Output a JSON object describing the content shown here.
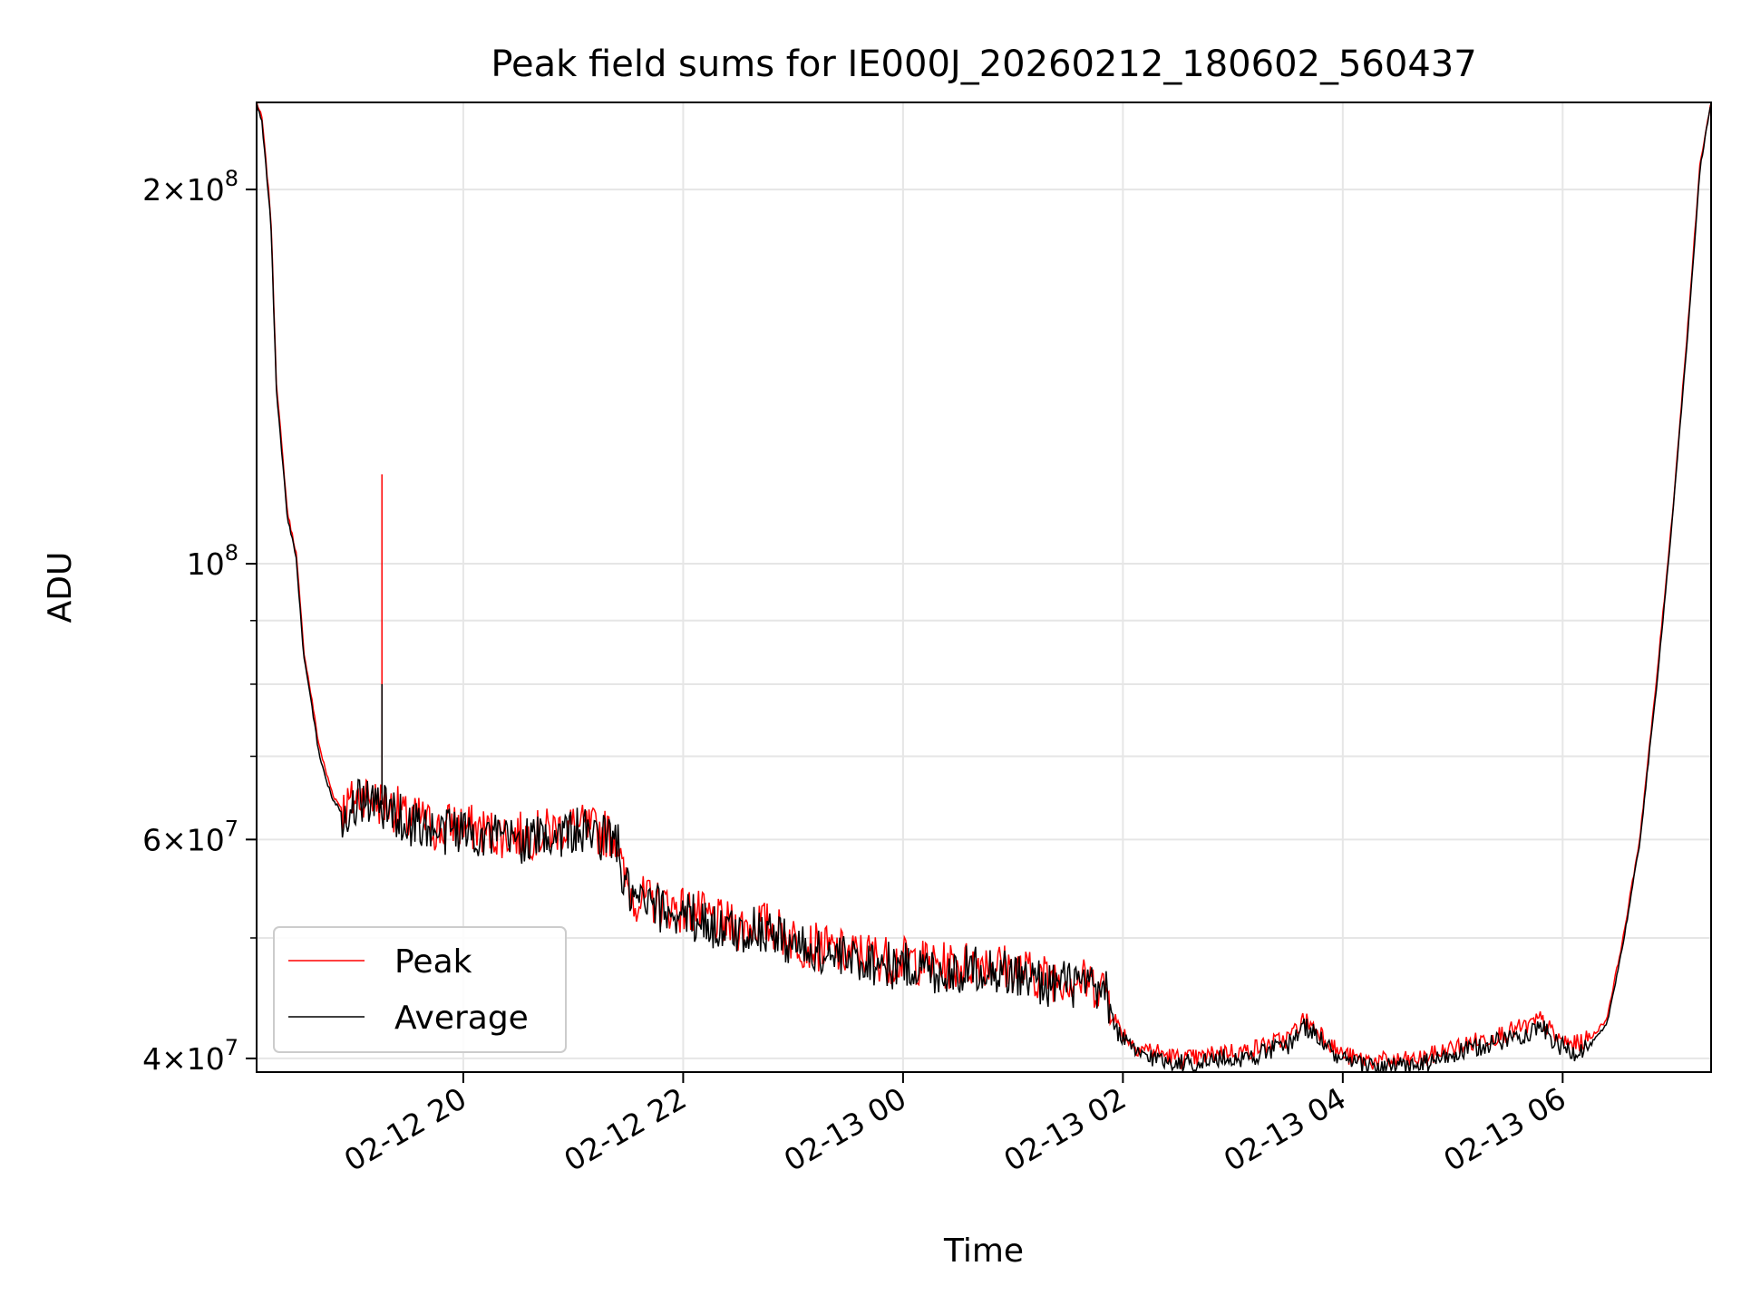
{
  "chart_data": {
    "type": "line",
    "title": "Peak field sums for IE000J_20260212_180602_560437",
    "xlabel": "Time",
    "ylabel": "ADU",
    "yscale": "log",
    "grid": true,
    "legend_position": "lower-left",
    "x_unit": "hours since 02-12 18:00",
    "xlim": [
      18.12,
      31.35
    ],
    "ylim": [
      39000000,
      235000000
    ],
    "x_ticks": [
      {
        "value": 20,
        "label": "02-12 20"
      },
      {
        "value": 22,
        "label": "02-12 22"
      },
      {
        "value": 24,
        "label": "02-13 00"
      },
      {
        "value": 26,
        "label": "02-13 02"
      },
      {
        "value": 28,
        "label": "02-13 04"
      },
      {
        "value": 30,
        "label": "02-13 06"
      }
    ],
    "y_major_ticks": [
      {
        "value": 40000000,
        "base": "4",
        "exp": "7"
      },
      {
        "value": 60000000,
        "base": "6",
        "exp": "7"
      },
      {
        "value": 100000000,
        "base": "",
        "exp": "8"
      },
      {
        "value": 200000000,
        "base": "2",
        "exp": "8"
      }
    ],
    "y_minor_ticks": [
      50000000,
      70000000,
      80000000,
      90000000
    ],
    "series": [
      {
        "name": "Peak",
        "color": "#ff0000",
        "x": [
          18.12,
          18.17,
          18.25,
          18.3,
          18.4,
          18.48,
          18.55,
          18.62,
          18.68,
          18.75,
          18.82,
          18.9,
          19.0,
          19.1,
          19.2,
          19.3,
          19.4,
          19.5,
          19.6,
          19.7,
          19.8,
          19.9,
          20.0,
          20.2,
          20.4,
          20.6,
          20.8,
          21.0,
          21.2,
          21.4,
          21.45,
          21.55,
          21.7,
          21.9,
          22.1,
          22.3,
          22.5,
          22.7,
          22.9,
          23.1,
          23.3,
          23.5,
          23.7,
          23.9,
          24.1,
          24.3,
          24.5,
          24.7,
          24.9,
          25.1,
          25.3,
          25.5,
          25.7,
          25.85,
          25.95,
          26.1,
          26.3,
          26.5,
          26.7,
          26.9,
          27.1,
          27.3,
          27.5,
          27.65,
          27.8,
          27.95,
          28.1,
          28.3,
          28.5,
          28.7,
          28.9,
          29.1,
          29.3,
          29.5,
          29.7,
          29.8,
          29.95,
          30.1,
          30.25,
          30.4,
          30.55,
          30.7,
          30.85,
          31.0,
          31.15,
          31.25,
          31.35
        ],
        "values": [
          235000000,
          228000000,
          190000000,
          140000000,
          110000000,
          102000000,
          85000000,
          78000000,
          72000000,
          68000000,
          65000000,
          63500000,
          64500000,
          65500000,
          64500000,
          64000000,
          63500000,
          62000000,
          62500000,
          61500000,
          61000000,
          62000000,
          61500000,
          61000000,
          60500000,
          60500000,
          61000000,
          61500000,
          61000000,
          60500000,
          56000000,
          54000000,
          53500000,
          53000000,
          52500000,
          51500000,
          51000000,
          51500000,
          50500000,
          49500000,
          49000000,
          48500000,
          48500000,
          48000000,
          48000000,
          47500000,
          47500000,
          48000000,
          47500000,
          47000000,
          46500000,
          46500000,
          46000000,
          45500000,
          42500000,
          41000000,
          40500000,
          40000000,
          40000000,
          40500000,
          40500000,
          41000000,
          41500000,
          43000000,
          42000000,
          40500000,
          40000000,
          39800000,
          39800000,
          39900000,
          40500000,
          41000000,
          41500000,
          42000000,
          42500000,
          43000000,
          41500000,
          41000000,
          41500000,
          43000000,
          50000000,
          60000000,
          80000000,
          110000000,
          160000000,
          210000000,
          235000000
        ],
        "spikes": [
          {
            "x": 19.26,
            "value": 118000000
          }
        ]
      },
      {
        "name": "Average",
        "color": "#000000",
        "x": [
          18.12,
          18.17,
          18.25,
          18.3,
          18.4,
          18.48,
          18.55,
          18.62,
          18.68,
          18.75,
          18.82,
          18.9,
          19.0,
          19.1,
          19.2,
          19.3,
          19.4,
          19.5,
          19.6,
          19.7,
          19.8,
          19.9,
          20.0,
          20.2,
          20.4,
          20.6,
          20.8,
          21.0,
          21.2,
          21.4,
          21.45,
          21.55,
          21.7,
          21.9,
          22.1,
          22.3,
          22.5,
          22.7,
          22.9,
          23.1,
          23.3,
          23.5,
          23.7,
          23.9,
          24.1,
          24.3,
          24.5,
          24.7,
          24.9,
          25.1,
          25.3,
          25.5,
          25.7,
          25.85,
          25.95,
          26.1,
          26.3,
          26.5,
          26.7,
          26.9,
          27.1,
          27.3,
          27.5,
          27.65,
          27.8,
          27.95,
          28.1,
          28.3,
          28.5,
          28.7,
          28.9,
          29.1,
          29.3,
          29.5,
          29.7,
          29.8,
          29.95,
          30.1,
          30.25,
          30.4,
          30.55,
          30.7,
          30.85,
          31.0,
          31.15,
          31.25,
          31.35
        ],
        "values": [
          235000000,
          226000000,
          188000000,
          138000000,
          109000000,
          101000000,
          84000000,
          77000000,
          71000000,
          67000000,
          64500000,
          63000000,
          64000000,
          65000000,
          64000000,
          63500000,
          63000000,
          61500000,
          62000000,
          61000000,
          60500000,
          61500000,
          61000000,
          60500000,
          60000000,
          60000000,
          60500000,
          61000000,
          60500000,
          60000000,
          55500000,
          53500000,
          53000000,
          52500000,
          52000000,
          51000000,
          50500000,
          51000000,
          50000000,
          49000000,
          48500000,
          48000000,
          48000000,
          47500000,
          47500000,
          47000000,
          47000000,
          47500000,
          47000000,
          46500000,
          46000000,
          46000000,
          45500000,
          45000000,
          42000000,
          40500000,
          40000000,
          39700000,
          39700000,
          40000000,
          40000000,
          40500000,
          41000000,
          42500000,
          41500000,
          40000000,
          39600000,
          39400000,
          39400000,
          39500000,
          40000000,
          40500000,
          41000000,
          41500000,
          42000000,
          42500000,
          41000000,
          40500000,
          41000000,
          42500000,
          49500000,
          59500000,
          79000000,
          109000000,
          158000000,
          208000000,
          235000000
        ],
        "spikes": [
          {
            "x": 19.26,
            "value": 80000000
          }
        ]
      }
    ]
  }
}
